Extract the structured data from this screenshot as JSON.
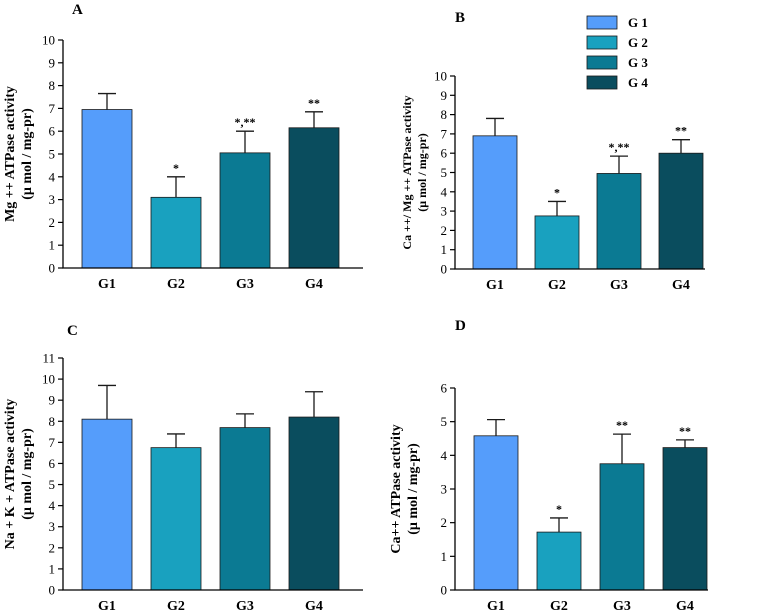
{
  "legend": {
    "entries": [
      {
        "label": "G 1",
        "color": "#559DFB"
      },
      {
        "label": "G 2",
        "color": "#19A1BF"
      },
      {
        "label": "G 3",
        "color": "#0B7A93"
      },
      {
        "label": "G 4",
        "color": "#0A4D5E"
      }
    ]
  },
  "chart_data": [
    {
      "panel": "A",
      "type": "bar",
      "categories": [
        "G1",
        "G2",
        "G3",
        "G4"
      ],
      "values": [
        6.95,
        3.1,
        5.05,
        6.15
      ],
      "errors": [
        0.7,
        0.9,
        0.95,
        0.7
      ],
      "annotations": [
        "",
        "*",
        "*,**",
        "**"
      ],
      "ylabel": [
        "Mg ++ ATPase activity",
        "(μ mol / mg-pr)"
      ],
      "ylim": [
        0,
        10
      ],
      "yticks": [
        0,
        1,
        2,
        3,
        4,
        5,
        6,
        7,
        8,
        9,
        10
      ]
    },
    {
      "panel": "B",
      "type": "bar",
      "categories": [
        "G1",
        "G2",
        "G3",
        "G4"
      ],
      "values": [
        6.9,
        2.75,
        4.95,
        6.0
      ],
      "errors": [
        0.9,
        0.75,
        0.9,
        0.7
      ],
      "annotations": [
        "",
        "*",
        "*,**",
        "**"
      ],
      "ylabel": [
        "Ca ++/ Mg ++ ATPase activity",
        "(μ mol / mg-pr)"
      ],
      "ylim": [
        0,
        10
      ],
      "yticks": [
        0,
        1,
        2,
        3,
        4,
        5,
        6,
        7,
        8,
        9,
        10
      ]
    },
    {
      "panel": "C",
      "type": "bar",
      "categories": [
        "G1",
        "G2",
        "G3",
        "G4"
      ],
      "values": [
        8.1,
        6.75,
        7.7,
        8.2
      ],
      "errors": [
        1.6,
        0.65,
        0.65,
        1.2
      ],
      "annotations": [
        "",
        "",
        "",
        ""
      ],
      "ylabel": [
        "Na + K + ATPase activity",
        "(μ mol / mg-pr)"
      ],
      "ylim": [
        0,
        11
      ],
      "yticks": [
        0,
        1,
        2,
        3,
        4,
        5,
        6,
        7,
        8,
        9,
        10,
        11
      ]
    },
    {
      "panel": "D",
      "type": "bar",
      "categories": [
        "G1",
        "G2",
        "G3",
        "G4"
      ],
      "values": [
        4.58,
        1.72,
        3.75,
        4.23
      ],
      "errors": [
        0.48,
        0.42,
        0.88,
        0.23
      ],
      "annotations": [
        "",
        "*",
        "**",
        "**"
      ],
      "ylabel": [
        "Ca++ ATPase activity",
        "(μ mol / mg-pr)"
      ],
      "ylim": [
        0,
        6
      ],
      "yticks": [
        0,
        1,
        2,
        3,
        4,
        5,
        6
      ]
    }
  ]
}
